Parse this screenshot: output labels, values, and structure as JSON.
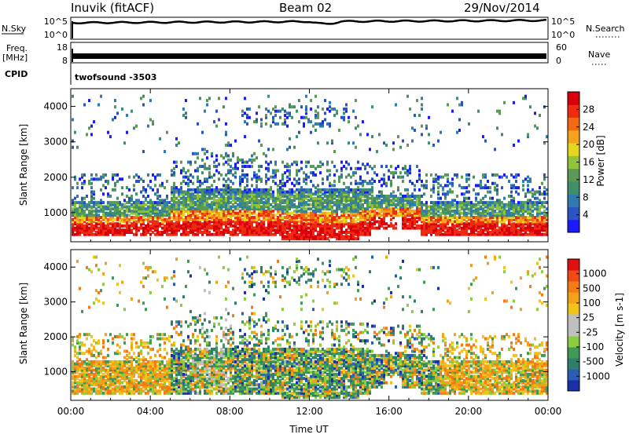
{
  "header": {
    "station": "Inuvik (fitACF)",
    "beam": "Beam 02",
    "date": "29/Nov/2014"
  },
  "summary": {
    "nsky_label": "N.Sky",
    "nsky_ticks": [
      "10^5",
      "10^0"
    ],
    "nsearch_label": "N.Search",
    "nsearch_ticks": [
      "10^5",
      "10^0"
    ],
    "freq_label": "Freq.",
    "freq_unit": "[MHz]",
    "freq_ticks": [
      "18",
      "8"
    ],
    "nave_label": "Nave",
    "nave_ticks": [
      "60",
      "0"
    ],
    "cpid_label": "CPID",
    "cpid_value": "twofsound -3503"
  },
  "chart_data": [
    {
      "type": "heatmap",
      "panel": "power",
      "ylabel": "Slant Range [km]",
      "ylim": [
        180,
        4500
      ],
      "yticks": [
        "4000",
        "3000",
        "2000",
        "1000"
      ],
      "colorbar_label": "Power [dB]",
      "colorbar_ticks": [
        "28",
        "24",
        "20",
        "16",
        "12",
        "8",
        "4"
      ],
      "colorbar_colors": [
        "#1a1aff",
        "#2a55c0",
        "#2f7ab0",
        "#3f8f6a",
        "#5a9a55",
        "#8fc43a",
        "#e4d81f",
        "#f7a21d",
        "#f46a12",
        "#ee2a10",
        "#d8000a"
      ]
    },
    {
      "type": "heatmap",
      "panel": "velocity",
      "ylabel": "Slant Range [km]",
      "ylim": [
        180,
        4500
      ],
      "yticks": [
        "4000",
        "3000",
        "2000",
        "1000"
      ],
      "colorbar_label": "Velocity [m s-1]",
      "colorbar_ticks": [
        "1000",
        "500",
        "100",
        "25",
        "-25",
        "-100",
        "-500",
        "-1000"
      ],
      "colorbar_colors": [
        "#1b2fa8",
        "#2a5db6",
        "#2d7e6a",
        "#3f9a55",
        "#8ccd3f",
        "#bfbfbf",
        "#bfbfbf",
        "#f2c21a",
        "#f5a01a",
        "#f47a16",
        "#ef4a12",
        "#e01010"
      ]
    }
  ],
  "xaxis": {
    "label": "Time UT",
    "ticks": [
      "00:00",
      "04:00",
      "08:00",
      "12:00",
      "16:00",
      "20:00",
      "00:00"
    ]
  }
}
